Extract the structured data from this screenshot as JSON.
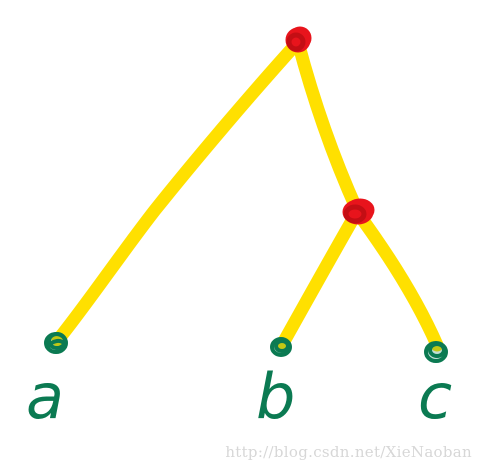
{
  "diagram": {
    "type": "binary-tree",
    "colors": {
      "edge": "#ffe000",
      "internal_node": "#e8141c",
      "leaf_node": "#0b7a52",
      "label": "#0b7a52"
    },
    "leaves": [
      {
        "id": "a",
        "label": "a"
      },
      {
        "id": "b",
        "label": "b"
      },
      {
        "id": "c",
        "label": "c"
      }
    ]
  },
  "watermark": "http://blog.csdn.net/XieNaoban"
}
